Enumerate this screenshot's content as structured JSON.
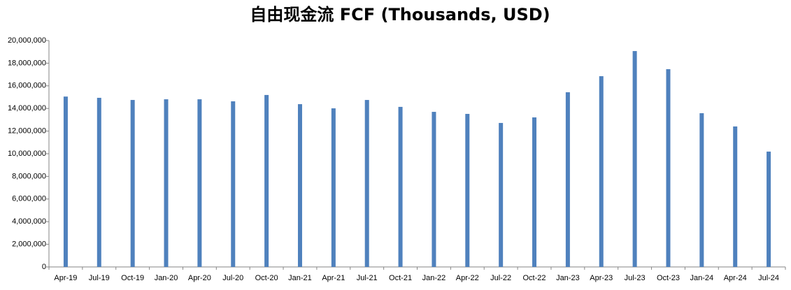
{
  "chart_data": {
    "type": "bar",
    "title": "自由现金流 FCF (Thousands, USD)",
    "categories": [
      "Apr-19",
      "Jul-19",
      "Oct-19",
      "Jan-20",
      "Apr-20",
      "Jul-20",
      "Oct-20",
      "Jan-21",
      "Apr-21",
      "Jul-21",
      "Oct-21",
      "Jan-22",
      "Apr-22",
      "Jul-22",
      "Oct-22",
      "Jan-23",
      "Apr-23",
      "Jul-23",
      "Oct-23",
      "Jan-24",
      "Apr-24",
      "Jul-24"
    ],
    "values": [
      15050000,
      14940000,
      14750000,
      14810000,
      14810000,
      14630000,
      15190000,
      14380000,
      14010000,
      14750000,
      14140000,
      13700000,
      13520000,
      12720000,
      13210000,
      15430000,
      16850000,
      19070000,
      17470000,
      13580000,
      12410000,
      10190000
    ],
    "color": "#4f81bd",
    "ylim": [
      0,
      20000000
    ],
    "yticks": [
      0,
      {
        "value": 2000000,
        "label": "2,000,000"
      },
      {
        "value": 4000000,
        "label": "4,000,000"
      },
      {
        "value": 6000000,
        "label": "6,000,000"
      },
      {
        "value": 8000000,
        "label": "8,000,000"
      },
      {
        "value": 10000000,
        "label": "10,000,000"
      },
      {
        "value": 12000000,
        "label": "12,000,000"
      },
      {
        "value": 14000000,
        "label": "14,000,000"
      },
      {
        "value": 16000000,
        "label": "16,000,000"
      },
      {
        "value": 18000000,
        "label": "18,000,000"
      },
      {
        "value": 20000000,
        "label": "20,000,000"
      }
    ],
    "grid": false
  }
}
